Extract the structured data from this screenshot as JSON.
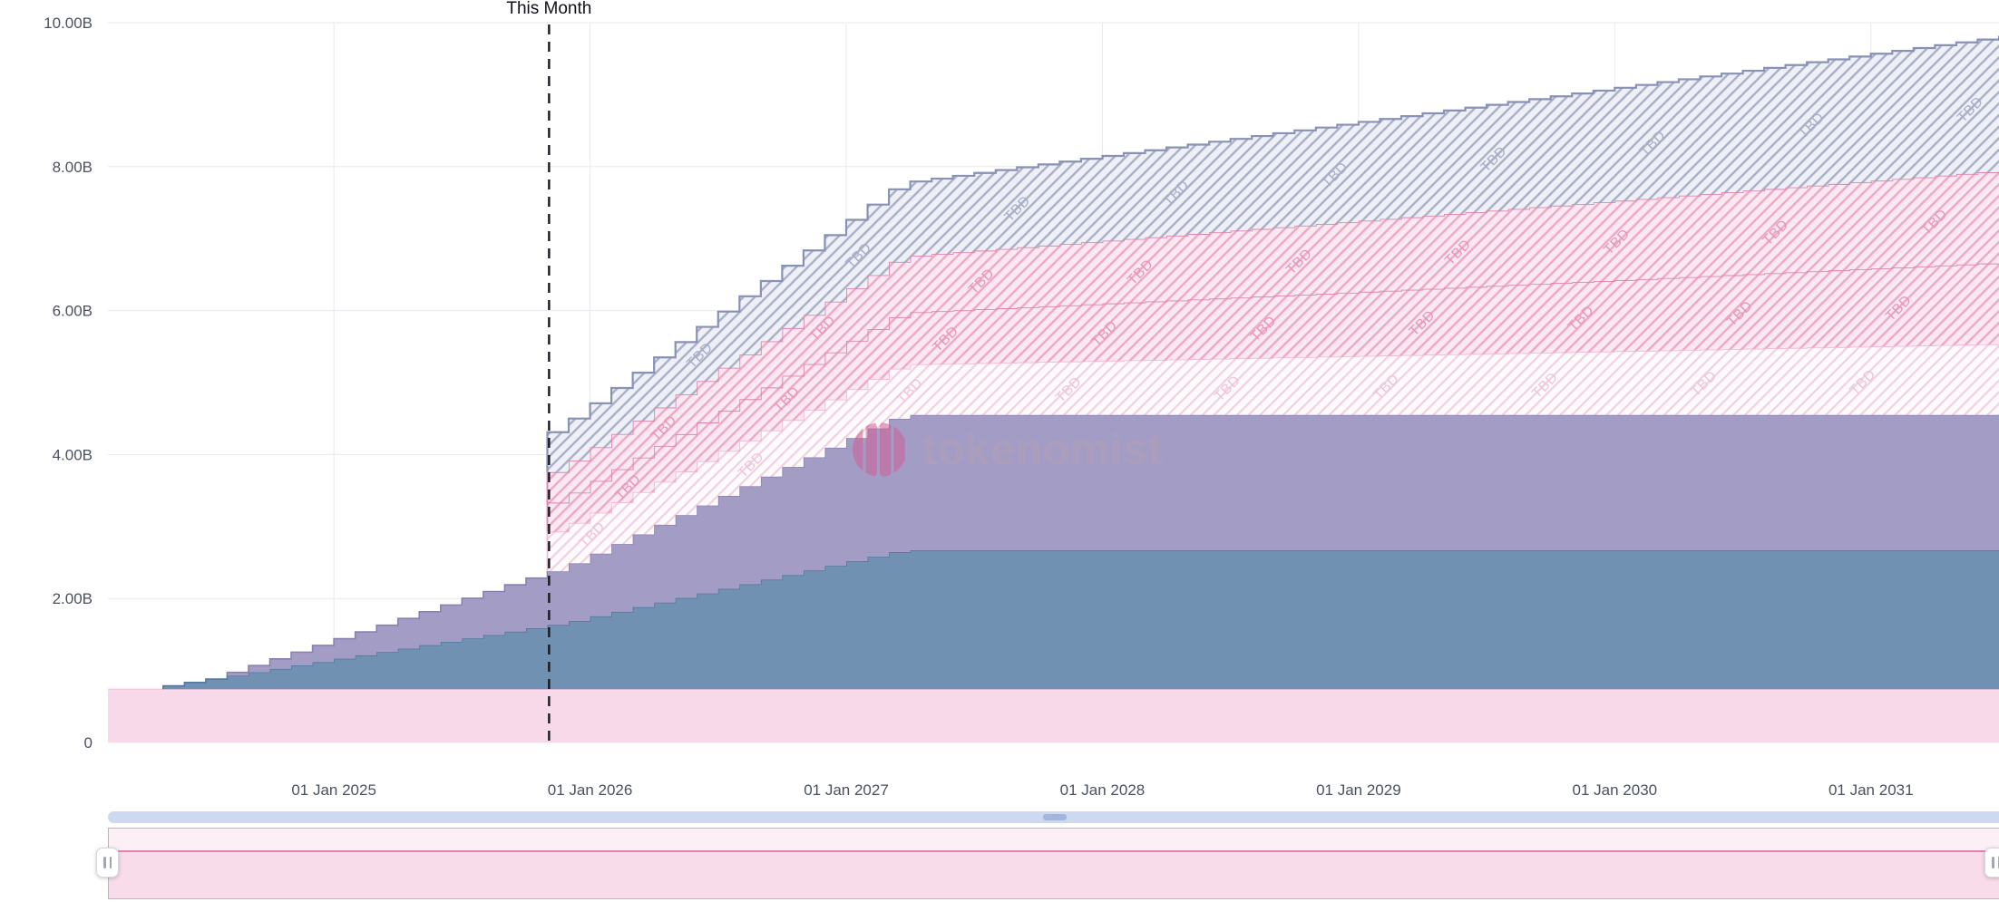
{
  "watermark": {
    "text": "tokenomist"
  },
  "annotations": {
    "this_month_label": "This Month"
  },
  "colors": {
    "background": "#ffffff",
    "grid": "#e8eaef",
    "axis_text": "#4a5160",
    "dashed_line": "#17171f",
    "scrollbar_track": "#cdd9f1",
    "scrollbar_grip": "#a3b5da",
    "brush_fill": "#fdeff6",
    "brush_fill_selected": "#f8dcea",
    "brush_border": "#e0a0c4",
    "brush_line": "#e87fae",
    "watermark_pink": "#cf5f93",
    "watermark_text_color": "#b3a0b4"
  },
  "chart_data": {
    "type": "area",
    "stacked": true,
    "step": "monthly",
    "title": "",
    "tbd_label": "TBD",
    "this_month_t": 2025.84,
    "x_axis": {
      "range_t": [
        2024.118,
        2031.5
      ],
      "ticks": [
        {
          "t": 2025.0,
          "label": "01 Jan 2025"
        },
        {
          "t": 2026.0,
          "label": "01 Jan 2026"
        },
        {
          "t": 2027.0,
          "label": "01 Jan 2027"
        },
        {
          "t": 2028.0,
          "label": "01 Jan 2028"
        },
        {
          "t": 2029.0,
          "label": "01 Jan 2029"
        },
        {
          "t": 2030.0,
          "label": "01 Jan 2030"
        },
        {
          "t": 2031.0,
          "label": "01 Jan 2031"
        }
      ]
    },
    "y_axis": {
      "range": [
        0,
        10
      ],
      "unit": "B",
      "ticks": [
        {
          "v": 0,
          "label": "0"
        },
        {
          "v": 2,
          "label": "2.00B"
        },
        {
          "v": 4,
          "label": "4.00B"
        },
        {
          "v": 6,
          "label": "6.00B"
        },
        {
          "v": 8,
          "label": "8.00B"
        },
        {
          "v": 10,
          "label": "10.00B"
        }
      ]
    },
    "series": [
      {
        "id": "pink-base",
        "style": "solid",
        "fill": "#f7d9e9",
        "stroke": "#f0c4da",
        "stroke_width": 1.2,
        "points": [
          [
            2024.0,
            0.74
          ],
          [
            2031.7,
            0.74
          ]
        ]
      },
      {
        "id": "blue",
        "style": "solid",
        "fill": "#7191b2",
        "stroke": "#54799f",
        "stroke_width": 1.6,
        "points": [
          [
            2024.25,
            0
          ],
          [
            2024.34,
            0.05
          ],
          [
            2025.88,
            0.92
          ],
          [
            2027.2,
            1.93
          ],
          [
            2031.7,
            1.93
          ]
        ]
      },
      {
        "id": "purple",
        "style": "solid",
        "fill": "#a39dc6",
        "stroke": "#8781b2",
        "stroke_width": 1.6,
        "points": [
          [
            2024.5,
            0
          ],
          [
            2025.88,
            0.77
          ],
          [
            2027.2,
            1.88
          ],
          [
            2031.7,
            1.88
          ]
        ]
      },
      {
        "id": "tbd-light",
        "style": "hatch-light",
        "hatched": true,
        "stroke": "#f2b3cf",
        "label_color": "#eec3d7",
        "stroke_width": 1.6,
        "points": [
          [
            2025.79,
            0
          ],
          [
            2025.82,
            0.55
          ],
          [
            2027.2,
            0.7
          ],
          [
            2031.7,
            1.0
          ]
        ]
      },
      {
        "id": "tbd-pink-1",
        "style": "hatch-pink",
        "hatched": true,
        "stroke": "#e084ab",
        "label_color": "#e596b7",
        "stroke_width": 1.8,
        "points": [
          [
            2025.79,
            0
          ],
          [
            2025.82,
            0.4
          ],
          [
            2027.2,
            0.72
          ],
          [
            2031.7,
            1.15
          ]
        ]
      },
      {
        "id": "tbd-pink-2",
        "style": "hatch-pink",
        "hatched": true,
        "stroke": "#e084ab",
        "label_color": "#e596b7",
        "stroke_width": 1.8,
        "points": [
          [
            2025.79,
            0
          ],
          [
            2025.82,
            0.42
          ],
          [
            2027.2,
            0.78
          ],
          [
            2031.7,
            1.3
          ]
        ]
      },
      {
        "id": "tbd-gray",
        "style": "hatch-gray",
        "hatched": true,
        "stroke": "#8891b6",
        "label_color": "#a5adc9",
        "stroke_width": 2.2,
        "points": [
          [
            2025.79,
            0
          ],
          [
            2025.82,
            0.55
          ],
          [
            2027.2,
            1.02
          ],
          [
            2031.7,
            1.9
          ]
        ]
      }
    ]
  }
}
